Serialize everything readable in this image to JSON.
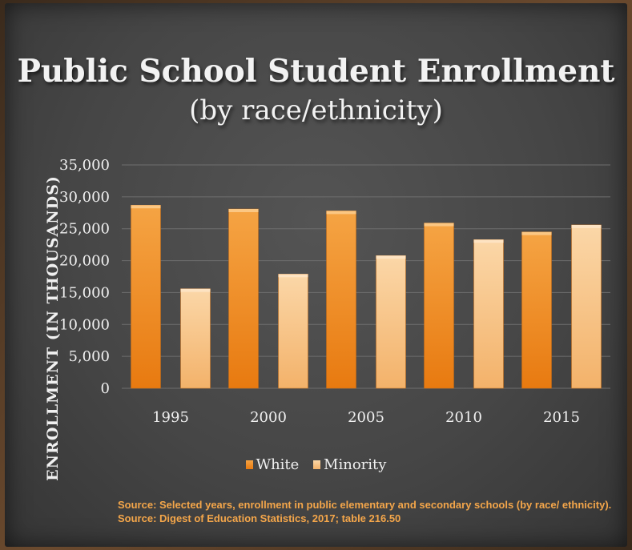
{
  "title": "Public School Student Enrollment",
  "subtitle": "(by race/ethnicity)",
  "source_lines": [
    "Source: Selected years, enrollment in public elementary and secondary schools (by race/ ethnicity).",
    "Source: Digest of Education Statistics, 2017; table 216.50"
  ],
  "colors": {
    "white": "#f08a1c",
    "minority": "#f7c68f",
    "source": "#f4a64a",
    "grid": "#6e6e6e"
  },
  "chart_data": {
    "type": "bar",
    "title": "Public School Student Enrollment",
    "subtitle": "(by race/ethnicity)",
    "xlabel": "",
    "ylabel": "ENROLLMENT (IN THOUSANDS)",
    "categories": [
      "1995",
      "2000",
      "2005",
      "2010",
      "2015"
    ],
    "series": [
      {
        "name": "White",
        "values": [
          28700,
          28100,
          27800,
          25900,
          24500
        ]
      },
      {
        "name": "Minority",
        "values": [
          15600,
          17900,
          20800,
          23300,
          25600
        ]
      }
    ],
    "ylim": [
      0,
      35000
    ],
    "yticks": [
      "0",
      "5,000",
      "10,000",
      "15,000",
      "20,000",
      "25,000",
      "30,000",
      "35,000"
    ],
    "grid": true,
    "legend": "bottom"
  }
}
